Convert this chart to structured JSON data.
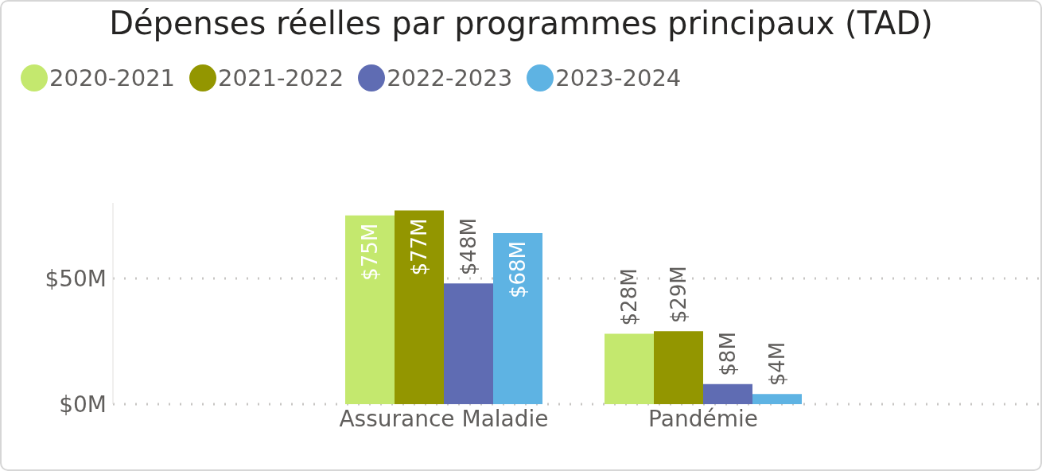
{
  "chart_data": {
    "type": "bar",
    "title": "Dépenses réelles par programmes principaux (TAD)",
    "categories": [
      "Assurance Maladie",
      "Pandémie"
    ],
    "series": [
      {
        "name": "2020-2021",
        "color": "#c4e86e",
        "values": [
          75,
          28
        ],
        "value_labels": [
          "$75M",
          "$28M"
        ]
      },
      {
        "name": "2021-2022",
        "color": "#939600",
        "values": [
          77,
          29
        ],
        "value_labels": [
          "$77M",
          "$29M"
        ]
      },
      {
        "name": "2022-2023",
        "color": "#5f6cb3",
        "values": [
          48,
          8
        ],
        "value_labels": [
          "$48M",
          "$8M"
        ]
      },
      {
        "name": "2023-2024",
        "color": "#5eb3e3",
        "values": [
          68,
          4
        ],
        "value_labels": [
          "$68M",
          "$4M"
        ]
      }
    ],
    "ylim": [
      0,
      80
    ],
    "yticks": [
      {
        "value": 0,
        "label": "$0M"
      },
      {
        "value": 50,
        "label": "$50M"
      }
    ],
    "grid": "y",
    "legend": "top left"
  }
}
